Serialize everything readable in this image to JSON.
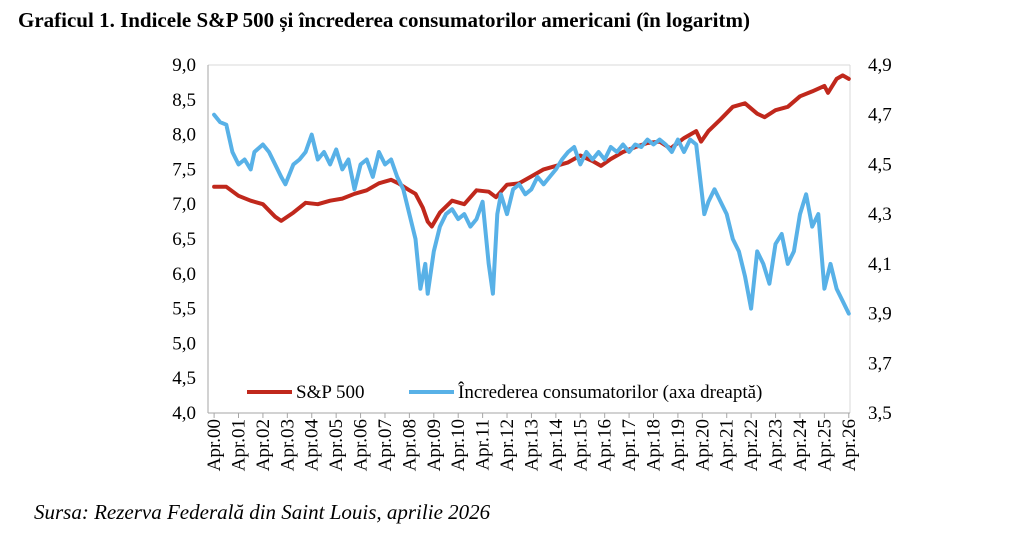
{
  "title": "Graficul 1. Indicele S&P 500 și încrederea consumatorilor americani (în logaritm)",
  "source": "Sursa: Rezerva Federală din Saint Louis, aprilie 2026",
  "chart_data": {
    "type": "line",
    "title": "Graficul 1. Indicele S&P 500 și încrederea consumatorilor americani (în logaritm)",
    "xlabel": "",
    "ylabel_left": "",
    "ylabel_right": "",
    "left_axis": {
      "min": 4.0,
      "max": 9.0,
      "step": 0.5,
      "tick_labels": [
        "4,0",
        "4,5",
        "5,0",
        "5,5",
        "6,0",
        "6,5",
        "7,0",
        "7,5",
        "8,0",
        "8,5",
        "9,0"
      ]
    },
    "right_axis": {
      "min": 3.5,
      "max": 4.9,
      "step": 0.2,
      "tick_labels": [
        "3,5",
        "3,7",
        "3,9",
        "4,1",
        "4,3",
        "4,5",
        "4,7",
        "4,9"
      ]
    },
    "categories": [
      "Apr.00",
      "Apr.01",
      "Apr.02",
      "Apr.03",
      "Apr.04",
      "Apr.05",
      "Apr.06",
      "Apr.07",
      "Apr.08",
      "Apr.09",
      "Apr.10",
      "Apr.11",
      "Apr.12",
      "Apr.13",
      "Apr.14",
      "Apr.15",
      "Apr.16",
      "Apr.17",
      "Apr.18",
      "Apr.19",
      "Apr.20",
      "Apr.21",
      "Apr.22",
      "Apr.23",
      "Apr.24",
      "Apr.25",
      "Apr.26"
    ],
    "legend_position": "bottom-inside",
    "series": [
      {
        "name": "S&P 500",
        "axis": "left",
        "color": "#C0281C",
        "x": [
          2000.25,
          2000.75,
          2001.25,
          2001.75,
          2002.25,
          2002.75,
          2003.0,
          2003.5,
          2004.0,
          2004.5,
          2005.0,
          2005.5,
          2006.0,
          2006.5,
          2007.0,
          2007.5,
          2007.8,
          2008.25,
          2008.5,
          2008.8,
          2009.0,
          2009.17,
          2009.5,
          2010.0,
          2010.5,
          2011.0,
          2011.5,
          2011.8,
          2012.25,
          2012.75,
          2013.25,
          2013.75,
          2014.25,
          2014.75,
          2015.25,
          2015.75,
          2016.1,
          2016.5,
          2017.0,
          2017.5,
          2018.0,
          2018.5,
          2018.95,
          2019.5,
          2020.0,
          2020.2,
          2020.5,
          2021.0,
          2021.5,
          2022.0,
          2022.5,
          2022.8,
          2023.25,
          2023.75,
          2024.25,
          2024.75,
          2025.25,
          2025.4,
          2025.75,
          2026.0,
          2026.25
        ],
        "values": [
          7.25,
          7.25,
          7.12,
          7.05,
          7.0,
          6.82,
          6.76,
          6.88,
          7.02,
          7.0,
          7.05,
          7.08,
          7.15,
          7.2,
          7.3,
          7.35,
          7.3,
          7.2,
          7.15,
          6.95,
          6.75,
          6.68,
          6.88,
          7.05,
          7.0,
          7.2,
          7.18,
          7.1,
          7.28,
          7.3,
          7.4,
          7.5,
          7.55,
          7.6,
          7.7,
          7.62,
          7.55,
          7.65,
          7.75,
          7.82,
          7.88,
          7.9,
          7.8,
          7.95,
          8.05,
          7.9,
          8.05,
          8.22,
          8.4,
          8.45,
          8.3,
          8.25,
          8.35,
          8.4,
          8.55,
          8.62,
          8.7,
          8.6,
          8.8,
          8.85,
          8.8
        ]
      },
      {
        "name": "Încrederea consumatorilor (axa dreaptă)",
        "axis": "right",
        "color": "#58B1E7",
        "x": [
          2000.25,
          2000.5,
          2000.75,
          2001.0,
          2001.25,
          2001.5,
          2001.75,
          2001.9,
          2002.25,
          2002.5,
          2002.75,
          2003.0,
          2003.17,
          2003.5,
          2003.75,
          2004.0,
          2004.25,
          2004.5,
          2004.75,
          2005.0,
          2005.25,
          2005.5,
          2005.75,
          2006.0,
          2006.25,
          2006.5,
          2006.75,
          2007.0,
          2007.25,
          2007.5,
          2007.75,
          2008.0,
          2008.25,
          2008.5,
          2008.7,
          2008.9,
          2009.0,
          2009.25,
          2009.5,
          2009.75,
          2010.0,
          2010.25,
          2010.5,
          2010.75,
          2011.0,
          2011.25,
          2011.5,
          2011.67,
          2011.85,
          2012.0,
          2012.25,
          2012.5,
          2012.75,
          2013.0,
          2013.25,
          2013.5,
          2013.75,
          2014.0,
          2014.25,
          2014.5,
          2014.75,
          2015.0,
          2015.25,
          2015.5,
          2015.75,
          2016.0,
          2016.25,
          2016.5,
          2016.75,
          2017.0,
          2017.25,
          2017.5,
          2017.75,
          2018.0,
          2018.25,
          2018.5,
          2018.75,
          2019.0,
          2019.25,
          2019.5,
          2019.75,
          2020.0,
          2020.33,
          2020.5,
          2020.75,
          2021.0,
          2021.25,
          2021.5,
          2021.75,
          2022.0,
          2022.25,
          2022.5,
          2022.75,
          2023.0,
          2023.25,
          2023.5,
          2023.75,
          2024.0,
          2024.25,
          2024.5,
          2024.75,
          2025.0,
          2025.25,
          2025.5,
          2025.75,
          2026.0,
          2026.25
        ],
        "values": [
          4.7,
          4.67,
          4.66,
          4.55,
          4.5,
          4.52,
          4.48,
          4.55,
          4.58,
          4.55,
          4.5,
          4.45,
          4.42,
          4.5,
          4.52,
          4.55,
          4.62,
          4.52,
          4.55,
          4.5,
          4.56,
          4.48,
          4.52,
          4.4,
          4.5,
          4.52,
          4.45,
          4.55,
          4.5,
          4.52,
          4.45,
          4.4,
          4.3,
          4.2,
          4.0,
          4.1,
          3.98,
          4.15,
          4.25,
          4.3,
          4.32,
          4.28,
          4.3,
          4.25,
          4.28,
          4.35,
          4.1,
          3.98,
          4.3,
          4.38,
          4.3,
          4.4,
          4.42,
          4.38,
          4.4,
          4.45,
          4.42,
          4.45,
          4.48,
          4.52,
          4.55,
          4.57,
          4.5,
          4.55,
          4.52,
          4.55,
          4.52,
          4.57,
          4.55,
          4.58,
          4.55,
          4.58,
          4.57,
          4.6,
          4.58,
          4.6,
          4.58,
          4.55,
          4.6,
          4.55,
          4.6,
          4.58,
          4.3,
          4.35,
          4.4,
          4.35,
          4.3,
          4.2,
          4.15,
          4.05,
          3.92,
          4.15,
          4.1,
          4.02,
          4.18,
          4.22,
          4.1,
          4.15,
          4.3,
          4.38,
          4.25,
          4.3,
          4.0,
          4.1,
          4.0,
          3.95,
          3.9
        ]
      }
    ]
  }
}
